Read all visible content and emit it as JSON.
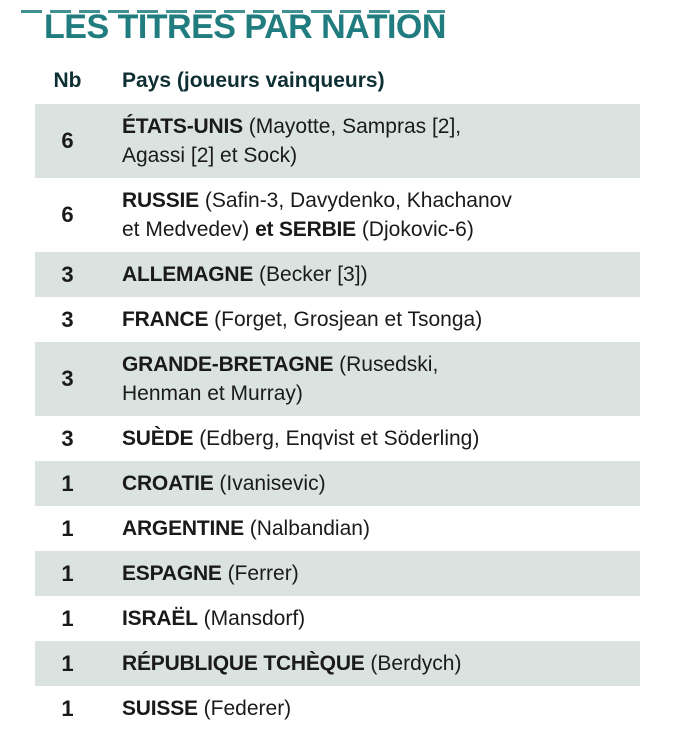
{
  "colors": {
    "accent_teal": "#207c7e",
    "row_shade": "#dbe3e1",
    "header_ink": "#0e2f33",
    "body_ink": "#1a1a1a"
  },
  "page": {
    "title": "LES TITRES PAR NATION"
  },
  "table": {
    "columns": {
      "nb": "Nb",
      "pays": "Pays (joueurs vainqueurs)"
    },
    "rows": [
      {
        "nb": "6",
        "segments": [
          {
            "text": "ÉTATS-UNIS",
            "bold": true
          },
          {
            "text": " (Mayotte, Sampras [2],\nAgassi [2] et Sock)",
            "bold": false
          }
        ]
      },
      {
        "nb": "6",
        "segments": [
          {
            "text": "RUSSIE",
            "bold": true
          },
          {
            "text": " (Safin-3, Davydenko, Khachanov\net Medvedev) ",
            "bold": false
          },
          {
            "text": "et SERBIE",
            "bold": true
          },
          {
            "text": " (Djokovic-6)",
            "bold": false
          }
        ]
      },
      {
        "nb": "3",
        "segments": [
          {
            "text": "ALLEMAGNE",
            "bold": true
          },
          {
            "text": " (Becker [3])",
            "bold": false
          }
        ]
      },
      {
        "nb": "3",
        "segments": [
          {
            "text": "FRANCE",
            "bold": true
          },
          {
            "text": " (Forget, Grosjean et Tsonga)",
            "bold": false
          }
        ]
      },
      {
        "nb": "3",
        "segments": [
          {
            "text": "GRANDE-BRETAGNE",
            "bold": true
          },
          {
            "text": " (Rusedski,\nHenman et Murray)",
            "bold": false
          }
        ]
      },
      {
        "nb": "3",
        "segments": [
          {
            "text": "SUÈDE",
            "bold": true
          },
          {
            "text": " (Edberg, Enqvist et Söderling)",
            "bold": false
          }
        ]
      },
      {
        "nb": "1",
        "segments": [
          {
            "text": "CROATIE",
            "bold": true
          },
          {
            "text": " (Ivanisevic)",
            "bold": false
          }
        ]
      },
      {
        "nb": "1",
        "segments": [
          {
            "text": "ARGENTINE",
            "bold": true
          },
          {
            "text": " (Nalbandian)",
            "bold": false
          }
        ]
      },
      {
        "nb": "1",
        "segments": [
          {
            "text": "ESPAGNE",
            "bold": true
          },
          {
            "text": " (Ferrer)",
            "bold": false
          }
        ]
      },
      {
        "nb": "1",
        "segments": [
          {
            "text": "ISRAËL",
            "bold": true
          },
          {
            "text": " (Mansdorf)",
            "bold": false
          }
        ]
      },
      {
        "nb": "1",
        "segments": [
          {
            "text": "RÉPUBLIQUE TCHÈQUE",
            "bold": true
          },
          {
            "text": " (Berdych)",
            "bold": false
          }
        ]
      },
      {
        "nb": "1",
        "segments": [
          {
            "text": "SUISSE",
            "bold": true
          },
          {
            "text": " (Federer)",
            "bold": false
          }
        ]
      }
    ]
  },
  "chart_data": {
    "type": "table",
    "title": "LES TITRES PAR NATION",
    "columns": [
      "Nb",
      "Pays (joueurs vainqueurs)"
    ],
    "categories": [
      "États-Unis",
      "Russie et Serbie",
      "Allemagne",
      "France",
      "Grande-Bretagne",
      "Suède",
      "Croatie",
      "Argentine",
      "Espagne",
      "Israël",
      "République tchèque",
      "Suisse"
    ],
    "values": [
      6,
      6,
      3,
      3,
      3,
      3,
      1,
      1,
      1,
      1,
      1,
      1
    ],
    "annotations": [
      "États-Unis: Mayotte, Sampras [2], Agassi [2] et Sock",
      "Russie: Safin-3, Davydenko, Khachanov et Medvedev; Serbie: Djokovic-6",
      "Allemagne: Becker [3]",
      "France: Forget, Grosjean et Tsonga",
      "Grande-Bretagne: Rusedski, Henman et Murray",
      "Suède: Edberg, Enqvist et Söderling",
      "Croatie: Ivanisevic",
      "Argentine: Nalbandian",
      "Espagne: Ferrer",
      "Israël: Mansdorf",
      "République tchèque: Berdych",
      "Suisse: Federer"
    ],
    "layout": "alternating shaded rows, shade color #dbe3e1, title color #207c7e"
  }
}
